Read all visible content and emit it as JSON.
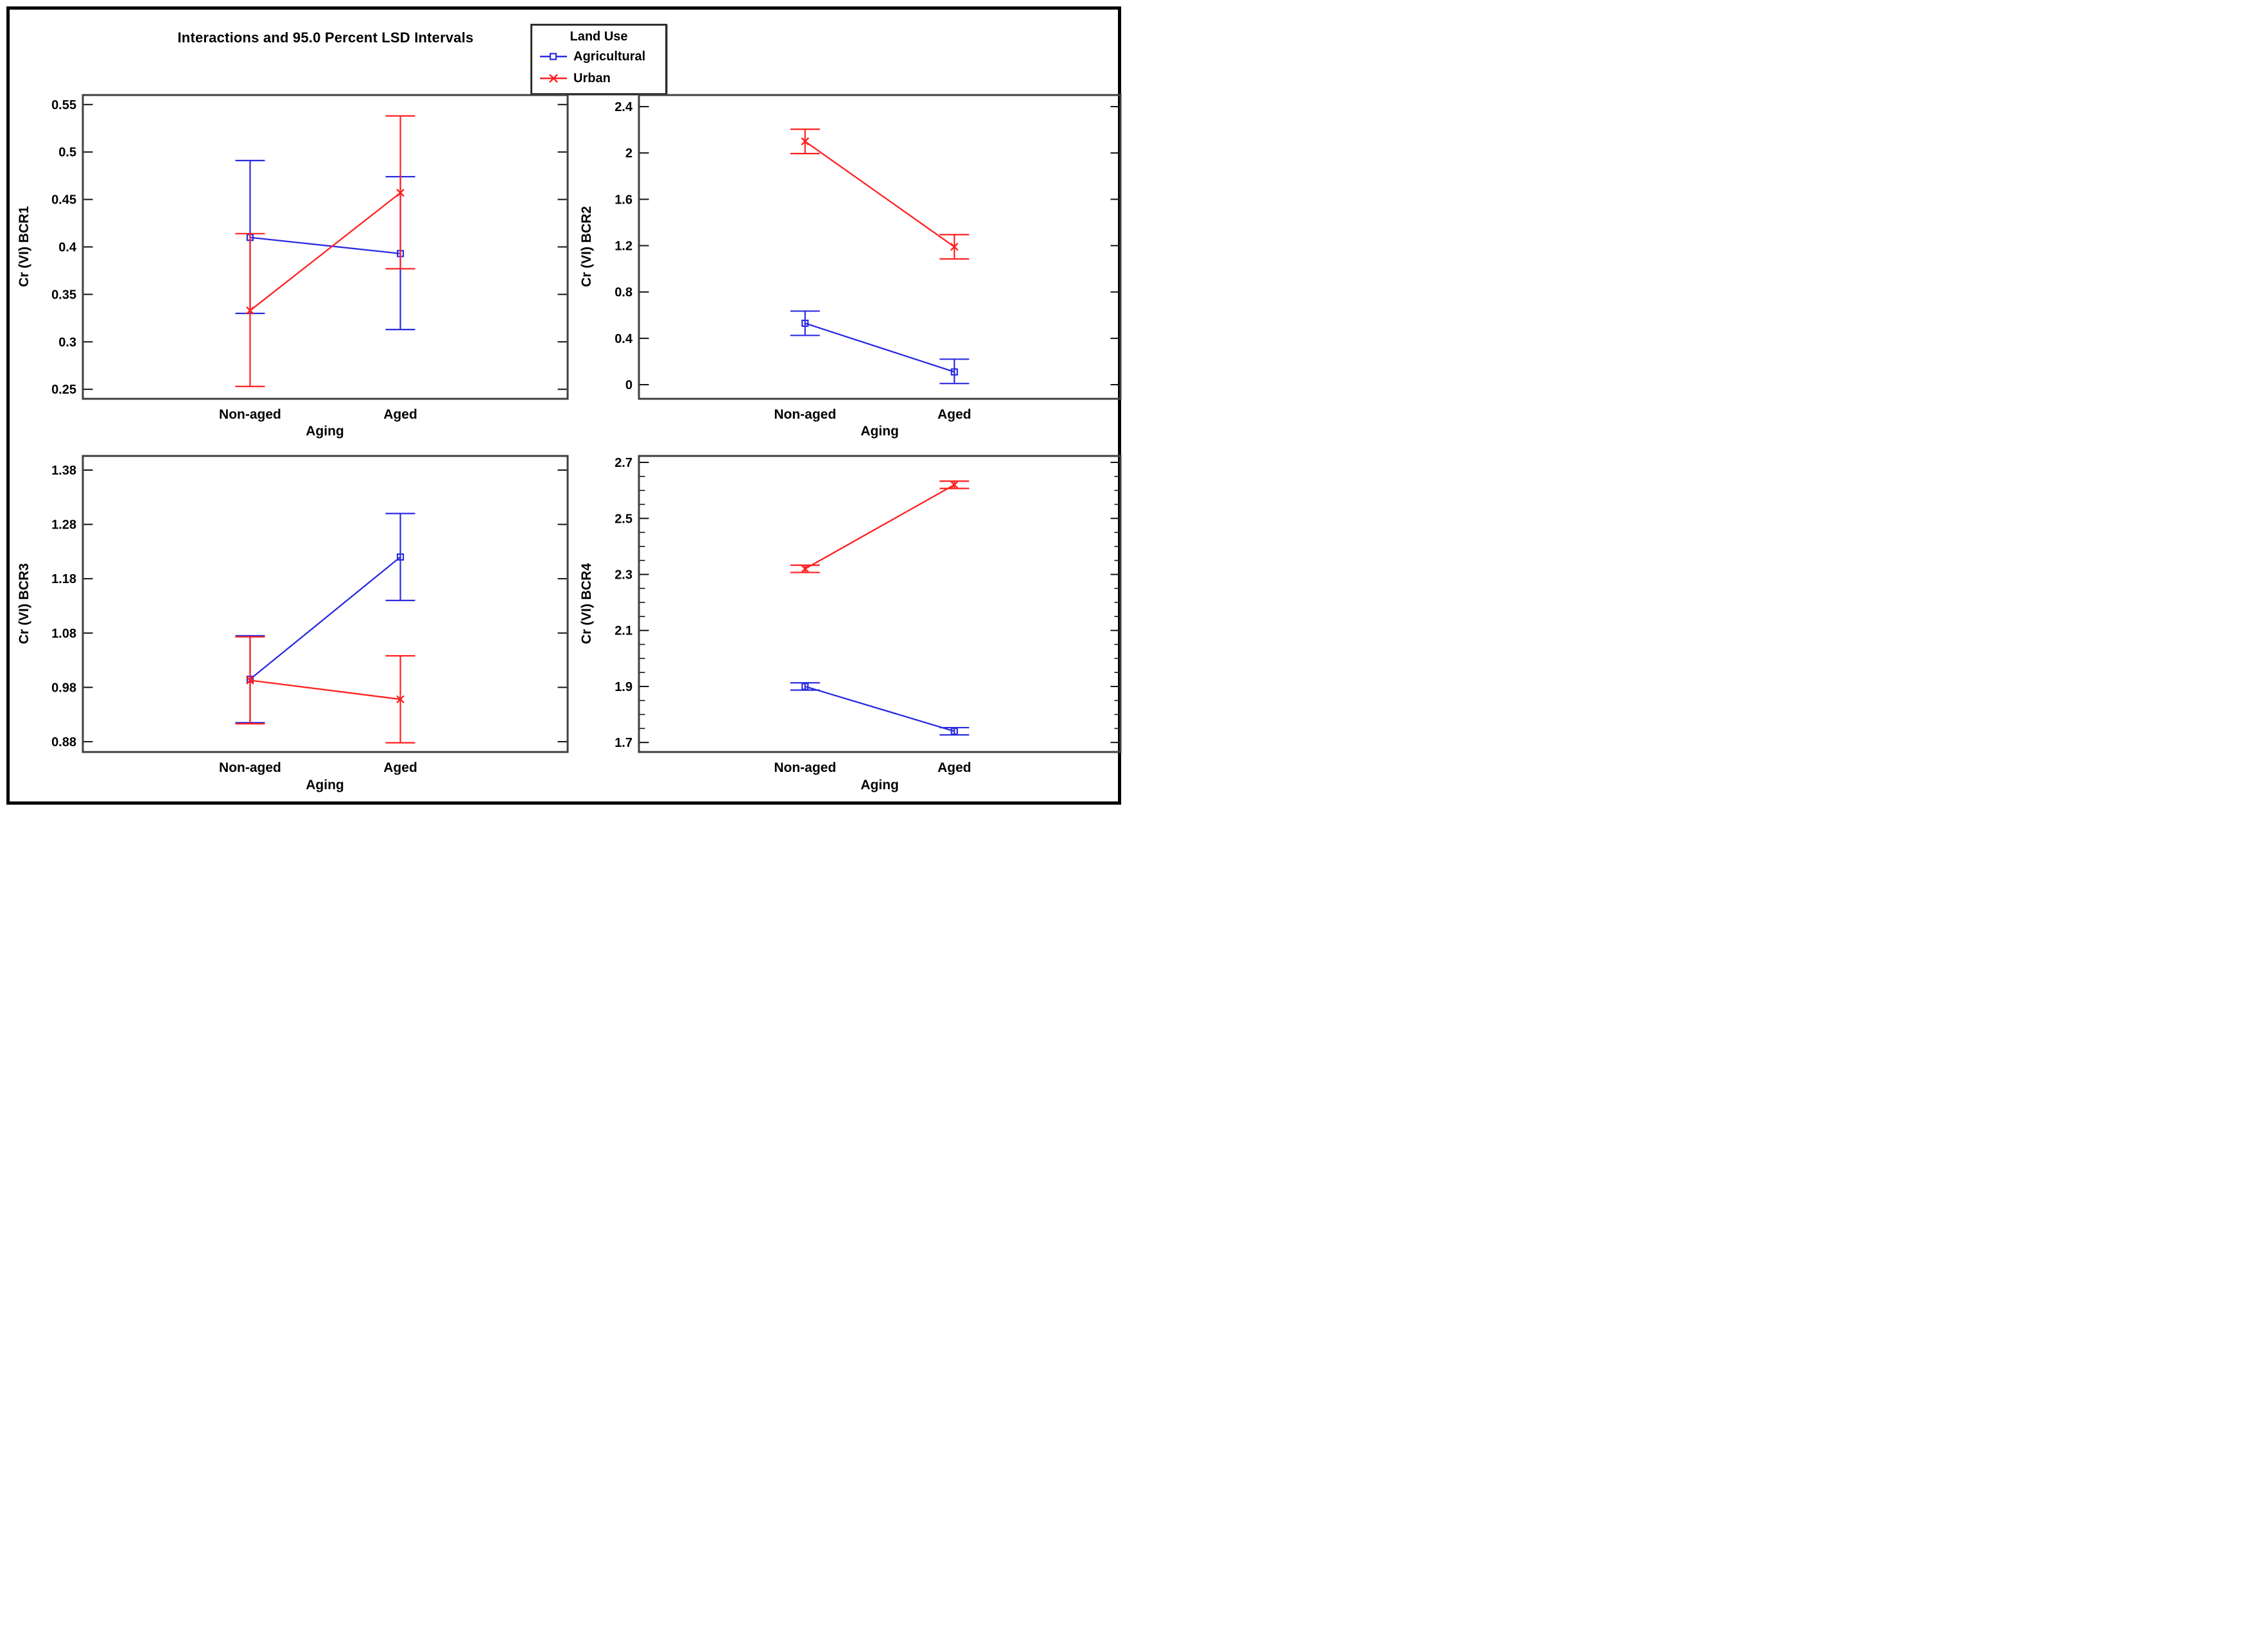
{
  "chart_data": {
    "type": "line",
    "title": "Interactions and 95.0 Percent LSD Intervals",
    "xlabel": "Aging",
    "categories": [
      "Non-aged",
      "Aged"
    ],
    "legend": {
      "title": "Land Use",
      "position": "top-right",
      "entries": [
        {
          "label": "Agricultural",
          "color": "#2B2BE0",
          "marker": "square"
        },
        {
          "label": "Urban",
          "color": "#FF2020",
          "marker": "x"
        }
      ]
    },
    "error_bars": "95.0 Percent LSD Intervals",
    "panels": [
      {
        "ylabel": "Cr (VI) BCR1",
        "ylim": [
          0.24,
          0.56
        ],
        "yticks": {
          "values": [
            0.25,
            0.3,
            0.35,
            0.4,
            0.45,
            0.5,
            0.55
          ],
          "labels": [
            "0.25",
            "0.3",
            "0.35",
            "0.4",
            "0.45",
            "0.5",
            "0.55"
          ]
        },
        "minor_step": null,
        "series": [
          {
            "name": "Agricultural",
            "means": [
              0.41,
              0.393
            ],
            "lo": [
              0.33,
              0.313
            ],
            "hi": [
              0.491,
              0.474
            ]
          },
          {
            "name": "Urban",
            "means": [
              0.333,
              0.457
            ],
            "lo": [
              0.253,
              0.377
            ],
            "hi": [
              0.414,
              0.538
            ]
          }
        ]
      },
      {
        "ylabel": "Cr (VI) BCR2",
        "ylim": [
          -0.122,
          2.5
        ],
        "yticks": {
          "values": [
            0,
            0.4,
            0.8,
            1.2,
            1.6,
            2,
            2.4
          ],
          "labels": [
            "0",
            "0.4",
            "0.8",
            "1.2",
            "1.6",
            "2",
            "2.4"
          ]
        },
        "minor_step": null,
        "series": [
          {
            "name": "Agricultural",
            "means": [
              0.53,
              0.11
            ],
            "lo": [
              0.425,
              0.01
            ],
            "hi": [
              0.635,
              0.22
            ]
          },
          {
            "name": "Urban",
            "means": [
              2.1,
              1.19
            ],
            "lo": [
              1.995,
              1.085
            ],
            "hi": [
              2.205,
              1.295
            ]
          }
        ]
      },
      {
        "ylabel": "Cr (VI) BCR3",
        "ylim": [
          0.861,
          1.406
        ],
        "yticks": {
          "values": [
            0.88,
            0.98,
            1.08,
            1.18,
            1.28,
            1.38
          ],
          "labels": [
            "0.88",
            "0.98",
            "1.08",
            "1.18",
            "1.28",
            "1.38"
          ]
        },
        "minor_step": null,
        "series": [
          {
            "name": "Agricultural",
            "means": [
              0.995,
              1.22
            ],
            "lo": [
              0.915,
              1.14
            ],
            "hi": [
              1.075,
              1.3
            ]
          },
          {
            "name": "Urban",
            "means": [
              0.993,
              0.958
            ],
            "lo": [
              0.913,
              0.878
            ],
            "hi": [
              1.073,
              1.038
            ]
          }
        ]
      },
      {
        "ylabel": "Cr (VI) BCR4",
        "ylim": [
          1.666,
          2.723
        ],
        "yticks": {
          "values": [
            1.7,
            1.9,
            2.1,
            2.3,
            2.5,
            2.7
          ],
          "labels": [
            "1.7",
            "1.9",
            "2.1",
            "2.3",
            "2.5",
            "2.7"
          ]
        },
        "minor_step": 0.05,
        "series": [
          {
            "name": "Agricultural",
            "means": [
              1.9,
              1.74
            ],
            "lo": [
              1.887,
              1.727
            ],
            "hi": [
              1.913,
              1.753
            ]
          },
          {
            "name": "Urban",
            "means": [
              2.32,
              2.62
            ],
            "lo": [
              2.307,
              2.607
            ],
            "hi": [
              2.333,
              2.633
            ]
          }
        ]
      }
    ],
    "style": {
      "frame_color": "#3f3f3f",
      "tick_color": "#111111",
      "text_color": "#000000",
      "background": "#ffffff"
    }
  }
}
